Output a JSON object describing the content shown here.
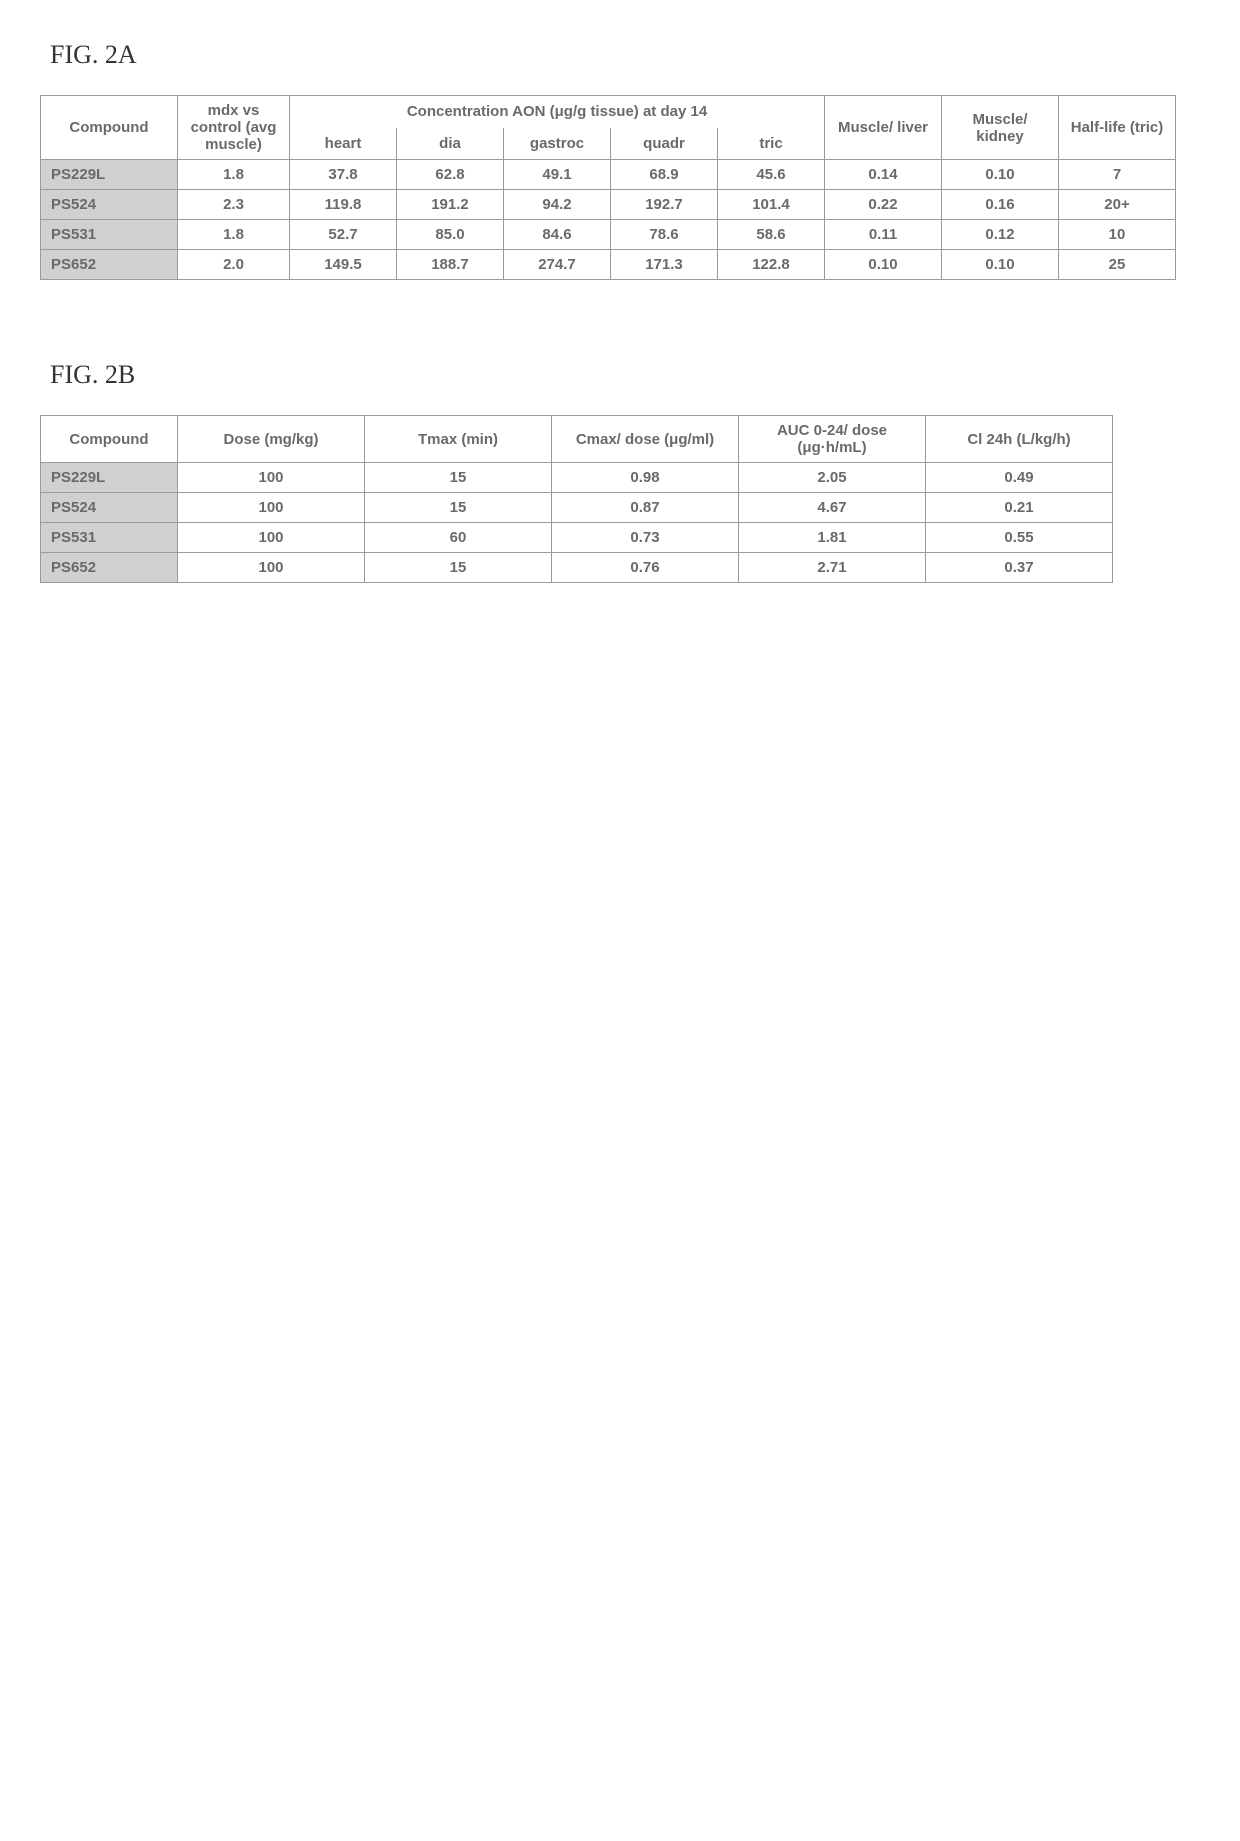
{
  "figA": {
    "label": "FIG. 2A",
    "headers": {
      "compound": "Compound",
      "mdx": "mdx vs control (avg muscle)",
      "conc_group": "Concentration AON (μg/g tissue) at day 14",
      "heart": "heart",
      "dia": "dia",
      "gastroc": "gastroc",
      "quadr": "quadr",
      "tric": "tric",
      "muscle_liver": "Muscle/ liver",
      "muscle_kidney": "Muscle/ kidney",
      "halflife": "Half-life (tric)"
    },
    "rows": [
      {
        "compound": "PS229L",
        "mdx": "1.8",
        "heart": "37.8",
        "dia": "62.8",
        "gastroc": "49.1",
        "quadr": "68.9",
        "tric": "45.6",
        "ml": "0.14",
        "mk": "0.10",
        "hl": "7"
      },
      {
        "compound": "PS524",
        "mdx": "2.3",
        "heart": "119.8",
        "dia": "191.2",
        "gastroc": "94.2",
        "quadr": "192.7",
        "tric": "101.4",
        "ml": "0.22",
        "mk": "0.16",
        "hl": "20+"
      },
      {
        "compound": "PS531",
        "mdx": "1.8",
        "heart": "52.7",
        "dia": "85.0",
        "gastroc": "84.6",
        "quadr": "78.6",
        "tric": "58.6",
        "ml": "0.11",
        "mk": "0.12",
        "hl": "10"
      },
      {
        "compound": "PS652",
        "mdx": "2.0",
        "heart": "149.5",
        "dia": "188.7",
        "gastroc": "274.7",
        "quadr": "171.3",
        "tric": "122.8",
        "ml": "0.10",
        "mk": "0.10",
        "hl": "25"
      }
    ]
  },
  "figB": {
    "label": "FIG. 2B",
    "headers": {
      "compound": "Compound",
      "dose": "Dose (mg/kg)",
      "tmax": "Tmax (min)",
      "cmax": "Cmax/ dose (μg/ml)",
      "auc": "AUC 0-24/ dose (μg·h/mL)",
      "cl": "Cl 24h (L/kg/h)"
    },
    "rows": [
      {
        "compound": "PS229L",
        "dose": "100",
        "tmax": "15",
        "cmax": "0.98",
        "auc": "2.05",
        "cl": "0.49"
      },
      {
        "compound": "PS524",
        "dose": "100",
        "tmax": "15",
        "cmax": "0.87",
        "auc": "4.67",
        "cl": "0.21"
      },
      {
        "compound": "PS531",
        "dose": "100",
        "tmax": "60",
        "cmax": "0.73",
        "auc": "1.81",
        "cl": "0.55"
      },
      {
        "compound": "PS652",
        "dose": "100",
        "tmax": "15",
        "cmax": "0.76",
        "auc": "2.71",
        "cl": "0.37"
      }
    ]
  }
}
